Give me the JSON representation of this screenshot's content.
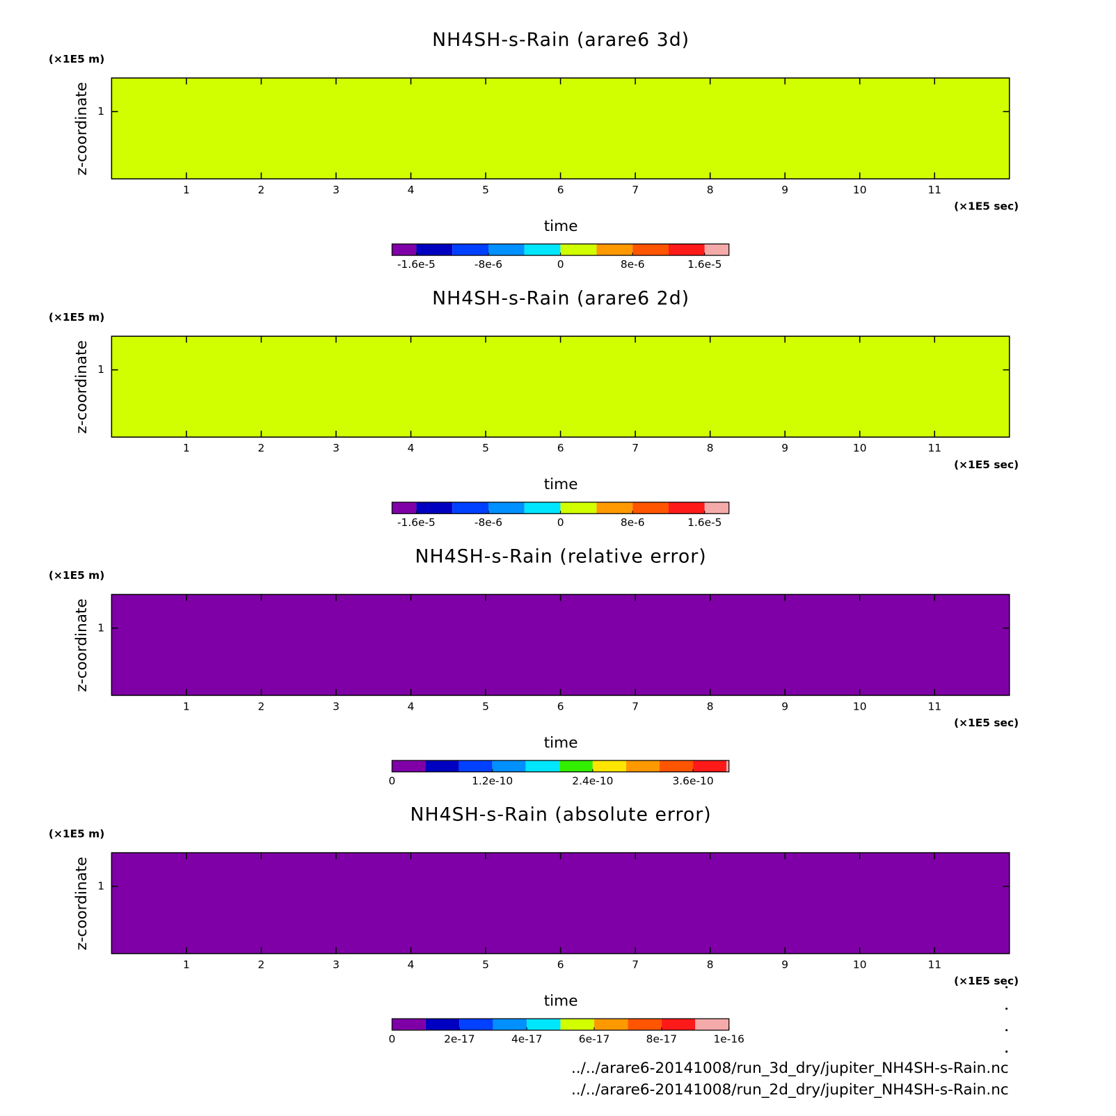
{
  "chart_data": [
    {
      "type": "heatmap",
      "title": "NH4SH-s-Rain (arare6 3d)",
      "xlabel": "time",
      "ylabel": "z-coordinate",
      "xunit": "(×1E5 sec)",
      "yunit": "(×1E5 m)",
      "xlim": [
        0,
        12
      ],
      "ylim": [
        0,
        1.5
      ],
      "xticks": [
        1,
        2,
        3,
        4,
        5,
        6,
        7,
        8,
        9,
        10,
        11
      ],
      "yticks": [
        1
      ],
      "field_value": 0,
      "colorbar": {
        "clim": [
          -1.87e-05,
          1.87e-05
        ],
        "levels": [
          -1.6e-05,
          -1.2e-05,
          -8e-06,
          -4e-06,
          0,
          4e-06,
          8e-06,
          1.2e-05,
          1.6e-05
        ],
        "colors": [
          "#8000a8",
          "#0000c0",
          "#0040ff",
          "#0090ff",
          "#00e6ff",
          "#d2ff00",
          "#ff9900",
          "#ff5500",
          "#ff1a1a",
          "#f5aaaa"
        ],
        "ticks": [
          {
            "value": -1.6e-05,
            "label": "-1.6e-5"
          },
          {
            "value": -8e-06,
            "label": "-8e-6"
          },
          0,
          {
            "value": 8e-06,
            "label": "8e-6"
          },
          {
            "value": 1.6e-05,
            "label": "1.6e-5"
          }
        ]
      }
    },
    {
      "type": "heatmap",
      "title": "NH4SH-s-Rain (arare6 2d)",
      "xlabel": "time",
      "ylabel": "z-coordinate",
      "xunit": "(×1E5 sec)",
      "yunit": "(×1E5 m)",
      "xlim": [
        0,
        12
      ],
      "ylim": [
        0,
        1.5
      ],
      "xticks": [
        1,
        2,
        3,
        4,
        5,
        6,
        7,
        8,
        9,
        10,
        11
      ],
      "yticks": [
        1
      ],
      "field_value": 0,
      "colorbar": {
        "clim": [
          -1.87e-05,
          1.87e-05
        ],
        "levels": [
          -1.6e-05,
          -1.2e-05,
          -8e-06,
          -4e-06,
          0,
          4e-06,
          8e-06,
          1.2e-05,
          1.6e-05
        ],
        "colors": [
          "#8000a8",
          "#0000c0",
          "#0040ff",
          "#0090ff",
          "#00e6ff",
          "#d2ff00",
          "#ff9900",
          "#ff5500",
          "#ff1a1a",
          "#f5aaaa"
        ],
        "ticks": [
          {
            "value": -1.6e-05,
            "label": "-1.6e-5"
          },
          {
            "value": -8e-06,
            "label": "-8e-6"
          },
          0,
          {
            "value": 8e-06,
            "label": "8e-6"
          },
          {
            "value": 1.6e-05,
            "label": "1.6e-5"
          }
        ]
      }
    },
    {
      "type": "heatmap",
      "title": "NH4SH-s-Rain (relative error)",
      "xlabel": "time",
      "ylabel": "z-coordinate",
      "xunit": "(×1E5 sec)",
      "yunit": "(×1E5 m)",
      "xlim": [
        0,
        12
      ],
      "ylim": [
        0,
        1.5
      ],
      "xticks": [
        1,
        2,
        3,
        4,
        5,
        6,
        7,
        8,
        9,
        10,
        11
      ],
      "yticks": [
        1
      ],
      "field_value": 0,
      "colorbar": {
        "clim": [
          0,
          4.03e-10
        ],
        "levels": [
          4e-11,
          8e-11,
          1.2e-10,
          1.6e-10,
          2e-10,
          2.4e-10,
          2.8e-10,
          3.2e-10,
          3.6e-10,
          4e-10
        ],
        "colors": [
          "#8000a8",
          "#0000c0",
          "#0040ff",
          "#0090ff",
          "#00e6ff",
          "#33ee00",
          "#ffe600",
          "#ff9900",
          "#ff5500",
          "#ff1a1a",
          "#f5aaaa"
        ],
        "ticks": [
          0,
          1.2e-10,
          2.4e-10,
          3.6e-10
        ]
      }
    },
    {
      "type": "heatmap",
      "title": "NH4SH-s-Rain (absolute error)",
      "xlabel": "time",
      "ylabel": "z-coordinate",
      "xunit": "(×1E5 sec)",
      "yunit": "(×1E5 m)",
      "xlim": [
        0,
        12
      ],
      "ylim": [
        0,
        1.5
      ],
      "xticks": [
        1,
        2,
        3,
        4,
        5,
        6,
        7,
        8,
        9,
        10,
        11
      ],
      "yticks": [
        1
      ],
      "field_value": 0,
      "colorbar": {
        "clim": [
          0,
          1e-16
        ],
        "levels": [
          1e-17,
          2e-17,
          3e-17,
          4e-17,
          5e-17,
          6e-17,
          7e-17,
          8e-17,
          9e-17
        ],
        "colors": [
          "#8000a8",
          "#0000c0",
          "#0040ff",
          "#0090ff",
          "#00e6ff",
          "#d2ff00",
          "#ff9900",
          "#ff5500",
          "#ff1a1a",
          "#f5aaaa"
        ],
        "ticks": [
          0,
          2e-17,
          4e-17,
          6e-17,
          8e-17,
          1e-16
        ]
      }
    }
  ],
  "footer": [
    "../../arare6-20141008/run_3d_dry/jupiter_NH4SH-s-Rain.nc",
    "../../arare6-20141008/run_2d_dry/jupiter_NH4SH-s-Rain.nc"
  ]
}
